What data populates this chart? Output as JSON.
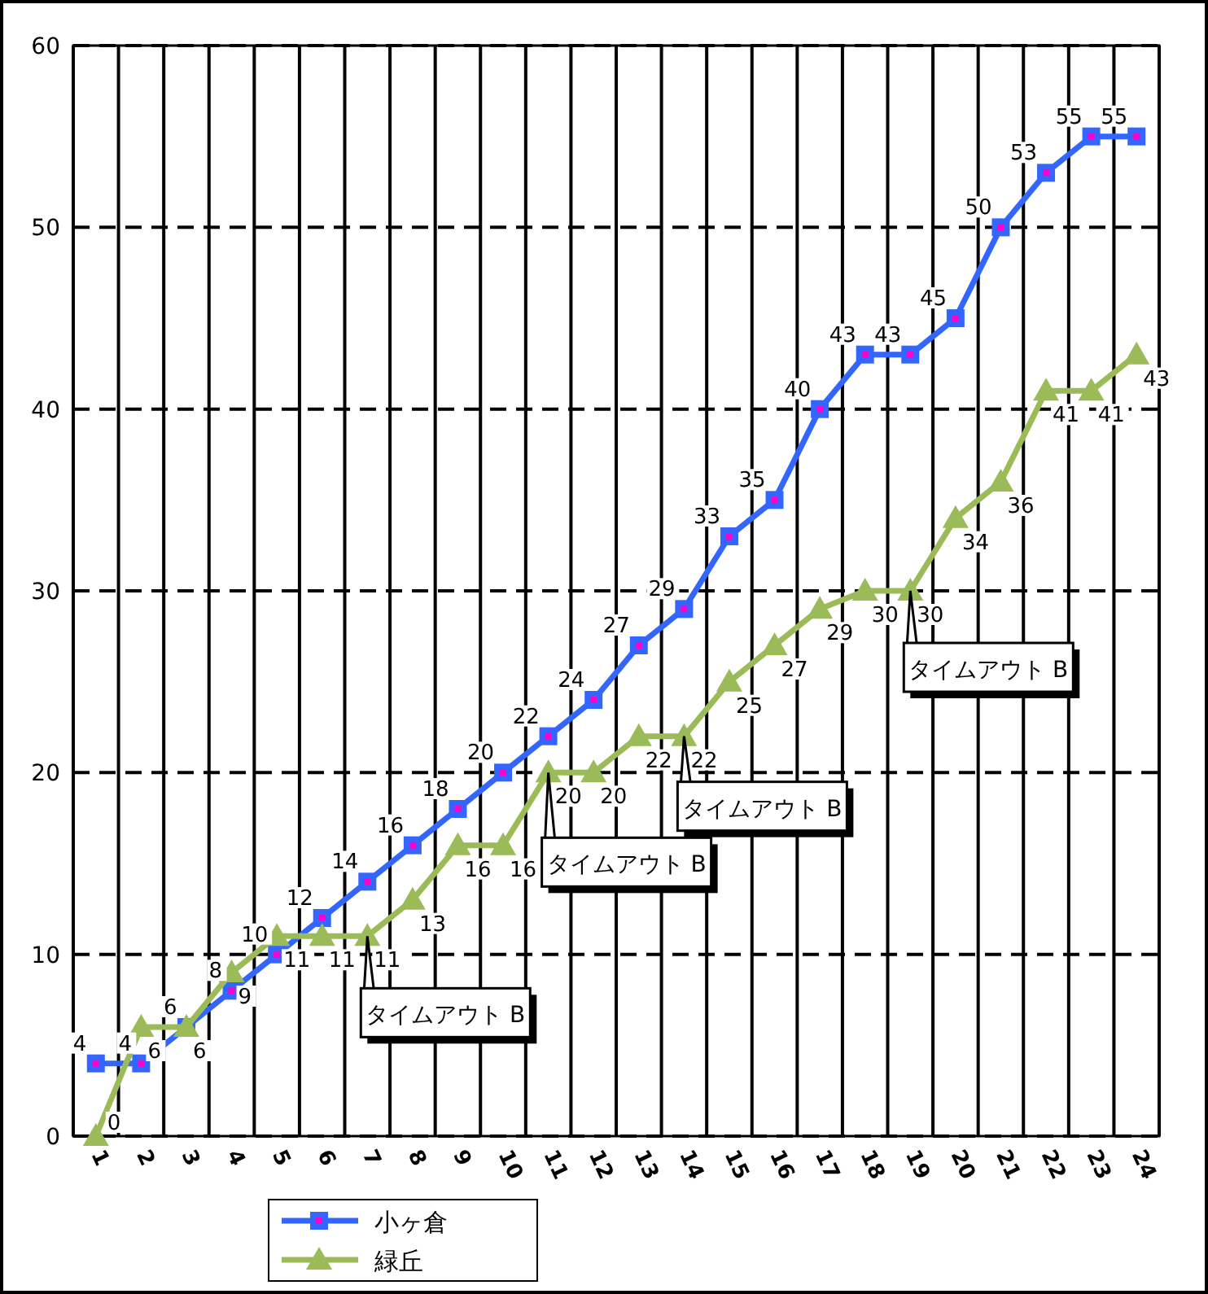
{
  "chart_data": {
    "type": "line",
    "categories": [
      "1",
      "2",
      "3",
      "4",
      "5",
      "6",
      "7",
      "8",
      "9",
      "10",
      "11",
      "12",
      "13",
      "14",
      "15",
      "16",
      "17",
      "18",
      "19",
      "20",
      "21",
      "22",
      "23",
      "24"
    ],
    "series": [
      {
        "name": "小ヶ倉",
        "color": "#3366ff",
        "marker": "square",
        "values": [
          4,
          4,
          6,
          8,
          10,
          12,
          14,
          16,
          18,
          20,
          22,
          24,
          27,
          29,
          33,
          35,
          40,
          43,
          43,
          45,
          50,
          53,
          55,
          55
        ]
      },
      {
        "name": "緑丘",
        "color": "#9bbb59",
        "marker": "triangle",
        "values": [
          0,
          6,
          6,
          9,
          11,
          11,
          11,
          13,
          16,
          16,
          20,
          20,
          22,
          22,
          25,
          27,
          29,
          30,
          30,
          34,
          36,
          41,
          41,
          43
        ]
      }
    ],
    "ylim": [
      0,
      60
    ],
    "yticks": [
      0,
      10,
      20,
      30,
      40,
      50,
      60
    ],
    "grid": true,
    "legend": "bottom",
    "data_labels": true,
    "annotations": [
      {
        "text": "タイムアウト B",
        "x": "7",
        "y": 11
      },
      {
        "text": "タイムアウト B",
        "x": "11",
        "y": 20
      },
      {
        "text": "タイムアウト B",
        "x": "14",
        "y": 22
      },
      {
        "text": "タイムアウト B",
        "x": "19",
        "y": 30
      }
    ]
  }
}
